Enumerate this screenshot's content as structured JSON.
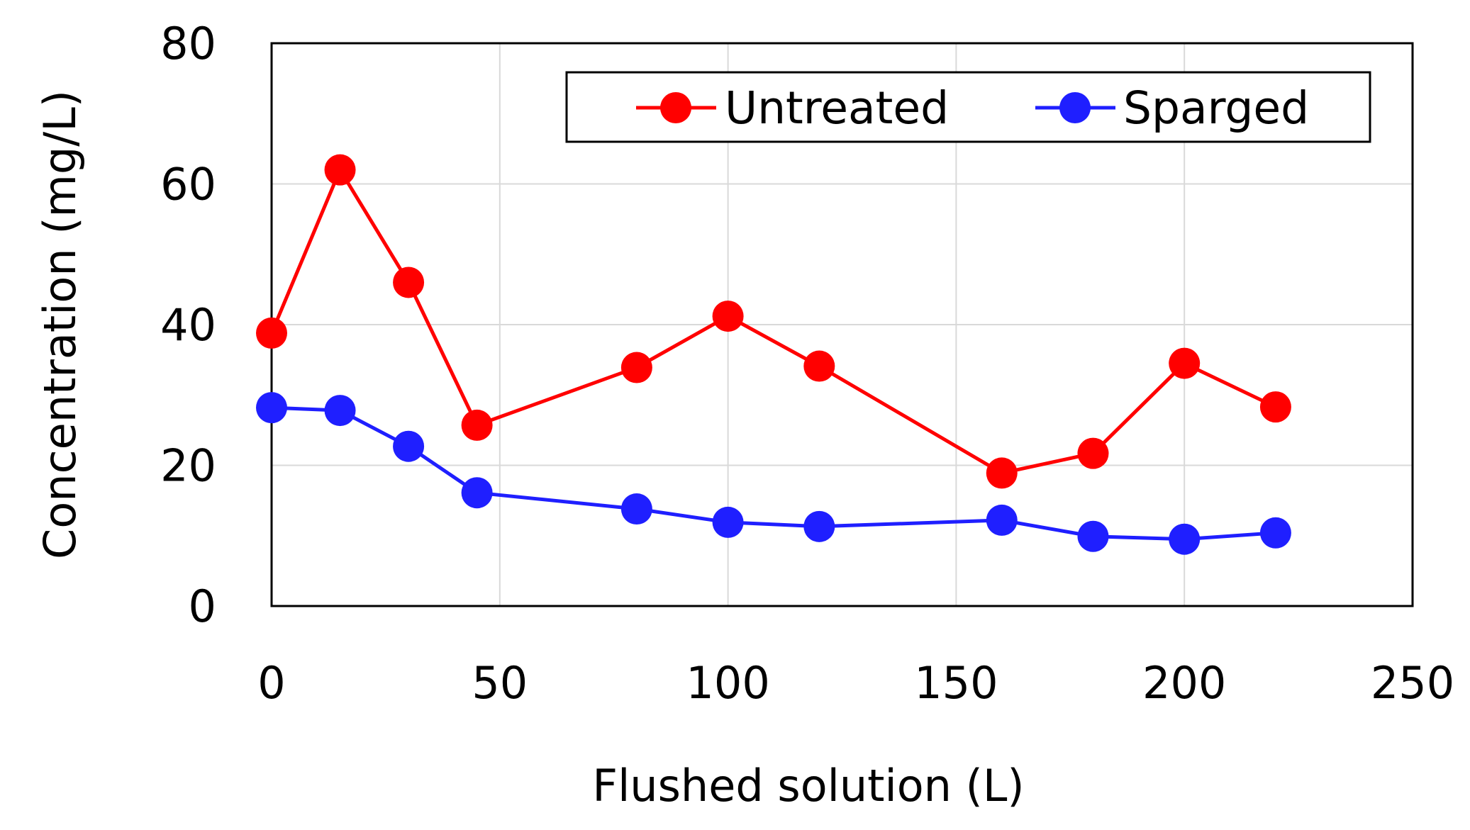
{
  "chart_data": {
    "type": "line",
    "title": "",
    "xlabel": "Flushed solution (L)",
    "ylabel": "Concentration (mg/L)",
    "xlim": [
      0,
      250
    ],
    "ylim": [
      0,
      80
    ],
    "x_ticks": [
      0,
      50,
      100,
      150,
      200,
      250
    ],
    "y_ticks": [
      0,
      20,
      40,
      60,
      80
    ],
    "grid": true,
    "legend_position": "top-right",
    "series": [
      {
        "name": "Untreated",
        "color": "#ff0000",
        "x": [
          0,
          15,
          30,
          45,
          80,
          100,
          120,
          160,
          180,
          200,
          220
        ],
        "values": [
          38.8,
          62.0,
          46.0,
          25.7,
          33.9,
          41.2,
          34.1,
          18.9,
          21.7,
          34.5,
          28.3
        ]
      },
      {
        "name": "Sparged",
        "color": "#1f1fff",
        "x": [
          0,
          15,
          30,
          45,
          80,
          100,
          120,
          160,
          180,
          200,
          220
        ],
        "values": [
          28.2,
          27.8,
          22.7,
          16.1,
          13.8,
          11.9,
          11.3,
          12.2,
          9.9,
          9.5,
          10.4
        ]
      }
    ]
  }
}
